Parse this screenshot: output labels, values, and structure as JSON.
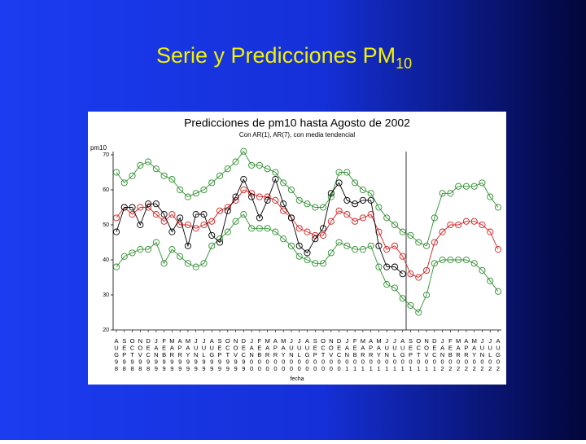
{
  "slide": {
    "title": "Serie y Predicciones PM",
    "title_subscript": "10"
  },
  "chart_data": {
    "type": "line",
    "title": "Predicciones de pm10 hasta Agosto de 2002",
    "subtitle": "Con AR(1), AR(7), con media tendencial",
    "y_label": "pm10",
    "x_label": "fecha",
    "categories": [
      "AUG98",
      "SEP98",
      "OCT98",
      "NOV98",
      "DEC98",
      "JAN99",
      "FEB99",
      "MAR99",
      "APR99",
      "MAY99",
      "JUN99",
      "JUL99",
      "AUG99",
      "SEP99",
      "OCT99",
      "NOV99",
      "DEC99",
      "JAN00",
      "FEB00",
      "MAR00",
      "APR00",
      "MAY00",
      "JUN00",
      "JUL00",
      "AUG00",
      "SEP00",
      "OCT00",
      "NOV00",
      "DEC00",
      "JAN01",
      "FEB01",
      "MAR01",
      "APR01",
      "MAY01",
      "JUN01",
      "JUL01",
      "AUG01",
      "SEP01",
      "OCT01",
      "NOV01",
      "DEC01",
      "JAN02",
      "FEB02",
      "MAR02",
      "APR02",
      "MAY02",
      "JUN02",
      "JUL02",
      "AUG02"
    ],
    "series": [
      {
        "color": "#2f8f2f",
        "values": [
          65,
          62,
          64,
          67,
          68,
          66,
          64,
          63,
          60,
          58,
          59,
          60,
          62,
          64,
          66,
          68,
          71,
          67,
          67,
          66,
          65,
          62,
          60,
          57,
          56,
          55,
          55,
          58,
          65,
          65,
          62,
          60,
          59,
          55,
          52,
          50,
          48,
          47,
          45,
          44,
          52,
          59,
          59,
          61,
          61,
          61,
          62,
          58,
          55
        ]
      },
      {
        "color": "#2f8f2f",
        "values": [
          38,
          41,
          42,
          43,
          43,
          45,
          39,
          43,
          41,
          39,
          38,
          39,
          44,
          46,
          48,
          51,
          53,
          49,
          49,
          49,
          48,
          46,
          44,
          41,
          40,
          39,
          39,
          42,
          45,
          44,
          43,
          43,
          44,
          38,
          33,
          32,
          29,
          27,
          25,
          30,
          39,
          40,
          40,
          40,
          40,
          39,
          37,
          34,
          31
        ]
      },
      {
        "color": "#d42020",
        "values": [
          52,
          55,
          53,
          55,
          55,
          53,
          51,
          53,
          50,
          50,
          49,
          50,
          51,
          54,
          55,
          57,
          60,
          59,
          58,
          58,
          57,
          54,
          52,
          49,
          48,
          47,
          47,
          51,
          54,
          53,
          51,
          52,
          53,
          48,
          43,
          44,
          41,
          36,
          35,
          37,
          45,
          48,
          50,
          50,
          51,
          51,
          50,
          48,
          43
        ]
      },
      {
        "color": "#000000",
        "values": [
          48,
          55,
          55,
          50,
          56,
          56,
          53,
          48,
          52,
          44,
          53,
          53,
          47,
          45,
          54,
          58,
          63,
          58,
          52,
          57,
          63,
          56,
          52,
          44,
          42,
          46,
          49,
          59,
          62,
          57,
          56,
          57,
          57,
          44,
          38,
          38,
          36,
          null,
          null,
          null,
          null,
          null,
          null,
          null,
          null,
          null,
          null,
          null,
          null
        ]
      }
    ],
    "ylim": [
      20,
      70
    ],
    "yticks": [
      20,
      30,
      40,
      50,
      60,
      70
    ]
  }
}
